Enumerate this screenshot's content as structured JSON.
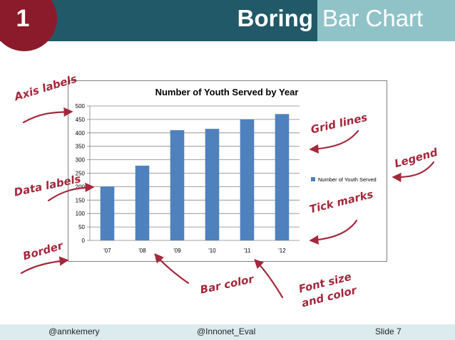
{
  "slide": {
    "number": "1",
    "title_left": "Boring",
    "title_right": "Bar Chart",
    "colors": {
      "header": "#215968",
      "header_accent": "#8fc3c8",
      "badge": "#8b1b2a",
      "annotation": "#a3283c",
      "bar": "#4f81bd"
    }
  },
  "annotations": {
    "axis_labels": "Axis labels",
    "grid_lines": "Grid lines",
    "legend": "Legend",
    "data_labels": "Data labels",
    "tick_marks": "Tick marks",
    "border": "Border",
    "bar_color": "Bar color",
    "font_size_line1": "Font size",
    "font_size_line2": "and color"
  },
  "chart_data": {
    "type": "bar",
    "title": "Number of Youth Served by Year",
    "categories": [
      "'07",
      "'08",
      "'09",
      "'10",
      "'11",
      "'12"
    ],
    "series": [
      {
        "name": "Number of Youth Served",
        "values": [
          200,
          278,
          410,
          415,
          450,
          470
        ]
      }
    ],
    "ylim": [
      0,
      500
    ],
    "yticks": [
      0,
      50,
      100,
      150,
      200,
      250,
      300,
      350,
      400,
      450,
      500
    ],
    "grid": true,
    "legend_position": "right"
  },
  "footer": {
    "left": "@annkemery",
    "center": "@Innonet_Eval",
    "right": "Slide 7"
  }
}
